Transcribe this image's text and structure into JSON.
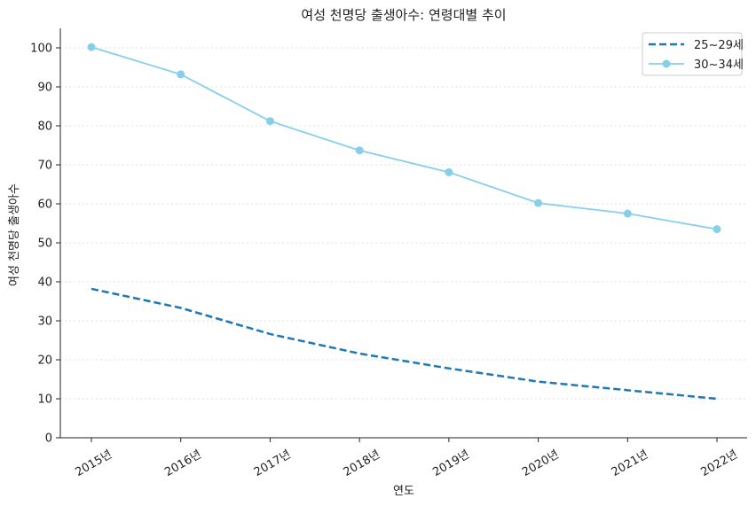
{
  "chart_data": {
    "type": "line",
    "title": "여성 천명당 출생아수: 연령대별 추이",
    "xlabel": "연도",
    "ylabel": "여성 천명당 출생아수",
    "categories": [
      "2015년",
      "2016년",
      "2017년",
      "2018년",
      "2019년",
      "2020년",
      "2021년",
      "2022년"
    ],
    "ylim": [
      0,
      105
    ],
    "yticks": [
      0,
      10,
      20,
      30,
      40,
      50,
      60,
      70,
      80,
      90,
      100
    ],
    "grid": "y",
    "legend_position": "top-right",
    "series": [
      {
        "name": "25~29세",
        "values": [
          38.2,
          33.3,
          26.6,
          21.6,
          17.8,
          14.4,
          12.2,
          10.0
        ],
        "color": "#1f77b4",
        "style": "dashed",
        "marker": "none"
      },
      {
        "name": "30~34세",
        "values": [
          100.2,
          93.2,
          81.2,
          73.7,
          68.1,
          60.2,
          57.5,
          53.5
        ],
        "color": "#87ceeb",
        "style": "solid",
        "marker": "circle"
      }
    ]
  }
}
